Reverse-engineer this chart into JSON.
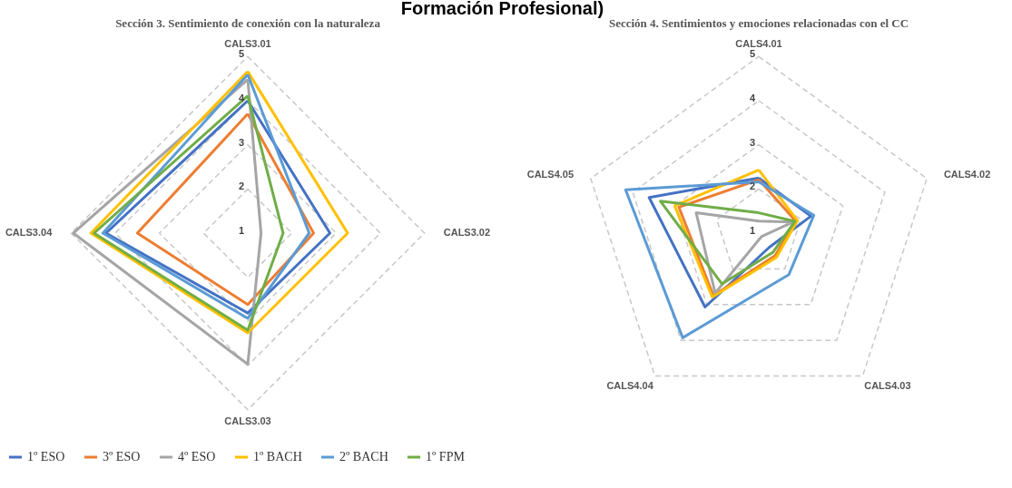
{
  "chart_data": [
    {
      "type": "radar",
      "title": "Sección 3. Sentimiento de conexión con la naturaleza",
      "annotations": [
        "Formación Profesional)"
      ],
      "categories": [
        "CALS3.01",
        "CALS3.02",
        "CALS3.03",
        "CALS3.04"
      ],
      "ylim": [
        1,
        5
      ],
      "yticks": [
        1,
        2,
        3,
        4,
        5
      ],
      "grid": true,
      "legend": "bottom",
      "series": [
        {
          "name": "1º ESO",
          "color": "#4472c4",
          "values": [
            4.0,
            2.86,
            2.81,
            4.21
          ]
        },
        {
          "name": "3º ESO",
          "color": "#ed7d31",
          "values": [
            3.7,
            2.49,
            2.62,
            3.5
          ]
        },
        {
          "name": "4º ESO",
          "color": "#a5a5a5",
          "values": [
            4.48,
            1.3,
            3.97,
            4.95
          ]
        },
        {
          "name": "1º BACH",
          "color": "#ffc000",
          "values": [
            4.66,
            3.26,
            3.26,
            4.55
          ]
        },
        {
          "name": "2º BACH",
          "color": "#5b9bd5",
          "values": [
            4.59,
            2.39,
            2.93,
            4.28
          ]
        },
        {
          "name": "1º FPM",
          "color": "#70ad47",
          "values": [
            4.11,
            1.8,
            3.2,
            4.48
          ]
        }
      ]
    },
    {
      "type": "radar",
      "title": "Sección 4. Sentimientos y emociones relacionadas con el CC",
      "categories": [
        "CALS4.01",
        "CALS4.02",
        "CALS4.03",
        "CALS4.04",
        "CALS4.05"
      ],
      "ylim": [
        1,
        5
      ],
      "yticks": [
        1,
        2,
        3,
        4,
        5
      ],
      "grid": true,
      "legend": "bottom",
      "series": [
        {
          "name": "1º ESO",
          "color": "#4472c4",
          "values": [
            2.25,
            2.24,
            1.4,
            3.07,
            3.61
          ]
        },
        {
          "name": "3º ESO",
          "color": "#ed7d31",
          "values": [
            2.21,
            1.88,
            1.63,
            2.75,
            2.9
          ]
        },
        {
          "name": "4º ESO",
          "color": "#a5a5a5",
          "values": [
            1.27,
            1.81,
            1.1,
            2.68,
            2.49
          ]
        },
        {
          "name": "1º BACH",
          "color": "#ffc000",
          "values": [
            2.43,
            1.92,
            1.68,
            2.79,
            3.0
          ]
        },
        {
          "name": "2º BACH",
          "color": "#5b9bd5",
          "values": [
            2.16,
            2.31,
            2.16,
            3.93,
            4.17
          ]
        },
        {
          "name": "1º FPM",
          "color": "#70ad47",
          "values": [
            1.46,
            1.86,
            1.54,
            2.42,
            3.34
          ]
        }
      ]
    }
  ]
}
